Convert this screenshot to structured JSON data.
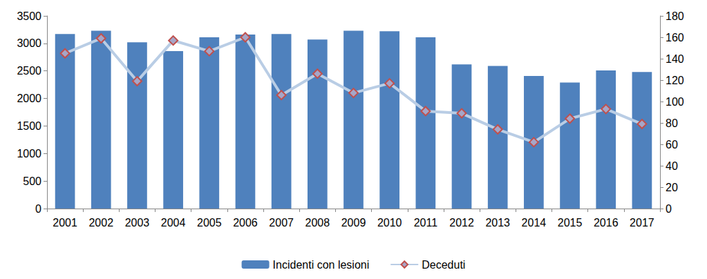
{
  "chart_data": {
    "type": "bar",
    "categories": [
      "2001",
      "2002",
      "2003",
      "2004",
      "2005",
      "2006",
      "2007",
      "2008",
      "2009",
      "2010",
      "2011",
      "2012",
      "2013",
      "2014",
      "2015",
      "2016",
      "2017"
    ],
    "series": [
      {
        "name": "Incidenti con lesioni",
        "type": "bar",
        "color": "#4f81bd",
        "values": [
          3170,
          3230,
          3020,
          2860,
          3110,
          3160,
          3170,
          3070,
          3230,
          3220,
          3110,
          2620,
          2590,
          2410,
          2290,
          2510,
          2480
        ]
      },
      {
        "name": "Deceduti",
        "type": "line",
        "axis": "y2",
        "color": "#b9cde5",
        "marker": "diamond",
        "values": [
          145,
          159,
          119,
          157,
          147,
          160,
          106,
          126,
          108,
          117,
          91,
          89,
          74,
          62,
          84,
          93,
          79
        ]
      }
    ],
    "ylim": [
      0,
      3500
    ],
    "yticks": [
      0,
      500,
      1000,
      1500,
      2000,
      2500,
      3000,
      3500
    ],
    "y2lim": [
      0,
      180
    ],
    "y2ticks": [
      0,
      20,
      40,
      60,
      80,
      100,
      120,
      140,
      160,
      180
    ],
    "grid": false,
    "legend": "bottom"
  }
}
